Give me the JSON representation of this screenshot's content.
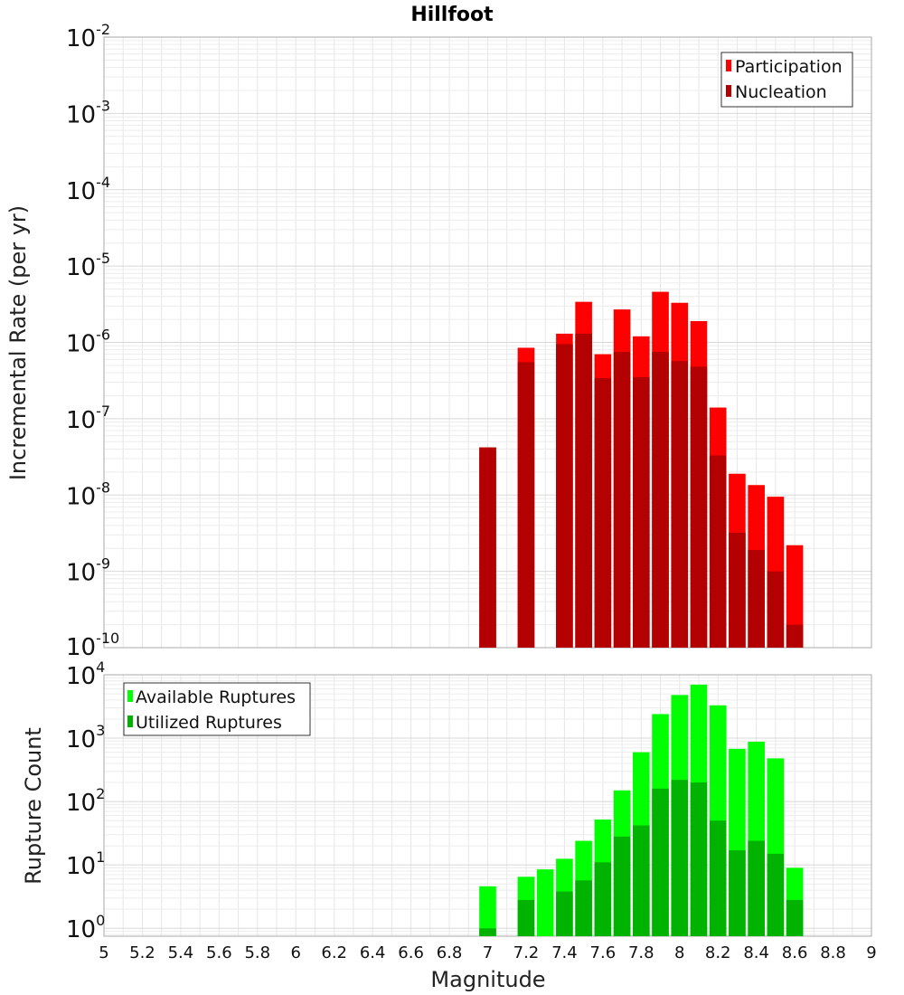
{
  "chart_data": [
    {
      "type": "bar",
      "title": "Hillfoot",
      "xlabel": "",
      "ylabel": "Incremental Rate (per yr)",
      "yscale": "log",
      "ylim": [
        1e-10,
        0.01
      ],
      "xlim": [
        5,
        9
      ],
      "grid": true,
      "legend_position": "top-right",
      "x": [
        7.0,
        7.2,
        7.4,
        7.5,
        7.6,
        7.7,
        7.8,
        7.9,
        8.0,
        8.1,
        8.2,
        8.3,
        8.4,
        8.5,
        8.6
      ],
      "series": [
        {
          "name": "Participation",
          "color": "#ff0000",
          "values": [
            4.2e-08,
            8.5e-07,
            1.3e-06,
            3.4e-06,
            7e-07,
            2.7e-06,
            1.2e-06,
            4.6e-06,
            3.3e-06,
            1.9e-06,
            1.4e-07,
            1.9e-08,
            1.35e-08,
            9.5e-09,
            2.2e-09
          ]
        },
        {
          "name": "Nucleation",
          "color": "#b30000",
          "values": [
            4.2e-08,
            5.5e-07,
            9.5e-07,
            1.3e-06,
            3.4e-07,
            7.5e-07,
            3.5e-07,
            7.5e-07,
            5.7e-07,
            4.8e-07,
            3.3e-08,
            3.2e-09,
            1.9e-09,
            1e-09,
            2e-10
          ]
        }
      ]
    },
    {
      "type": "bar",
      "title": "",
      "xlabel": "Magnitude",
      "ylabel": "Rupture Count",
      "yscale": "log",
      "ylim": [
        0.75,
        10000
      ],
      "xlim": [
        5,
        9
      ],
      "grid": true,
      "legend_position": "top-left",
      "x": [
        7.0,
        7.2,
        7.3,
        7.4,
        7.5,
        7.6,
        7.7,
        7.8,
        7.9,
        8.0,
        8.1,
        8.2,
        8.3,
        8.4,
        8.5,
        8.6
      ],
      "series": [
        {
          "name": "Available Ruptures",
          "color": "#00ff00",
          "values": [
            4.6,
            6.5,
            8.5,
            12.5,
            24,
            52,
            150,
            600,
            2400,
            4800,
            7000,
            3300,
            680,
            880,
            480,
            9
          ]
        },
        {
          "name": "Utilized Ruptures",
          "color": "#00b300",
          "values": [
            1,
            2.8,
            0,
            3.8,
            5.7,
            11,
            28,
            42,
            160,
            220,
            200,
            50,
            17,
            24,
            15,
            2.8
          ]
        }
      ]
    }
  ],
  "x_ticks": [
    "5",
    "5.2",
    "5.4",
    "5.6",
    "5.8",
    "6",
    "6.2",
    "6.4",
    "6.6",
    "6.8",
    "7",
    "7.2",
    "7.4",
    "7.6",
    "7.8",
    "8",
    "8.2",
    "8.4",
    "8.6",
    "8.8",
    "9"
  ],
  "top_ticks": [
    {
      "base": "10",
      "exp": "-2"
    },
    {
      "base": "10",
      "exp": "-3"
    },
    {
      "base": "10",
      "exp": "-4"
    },
    {
      "base": "10",
      "exp": "-5"
    },
    {
      "base": "10",
      "exp": "-6"
    },
    {
      "base": "10",
      "exp": "-7"
    },
    {
      "base": "10",
      "exp": "-8"
    },
    {
      "base": "10",
      "exp": "-9"
    },
    {
      "base": "10",
      "exp": "-10"
    }
  ],
  "bottom_ticks": [
    {
      "base": "10",
      "exp": "4"
    },
    {
      "base": "10",
      "exp": "3"
    },
    {
      "base": "10",
      "exp": "2"
    },
    {
      "base": "10",
      "exp": "1"
    },
    {
      "base": "10",
      "exp": "0"
    }
  ]
}
